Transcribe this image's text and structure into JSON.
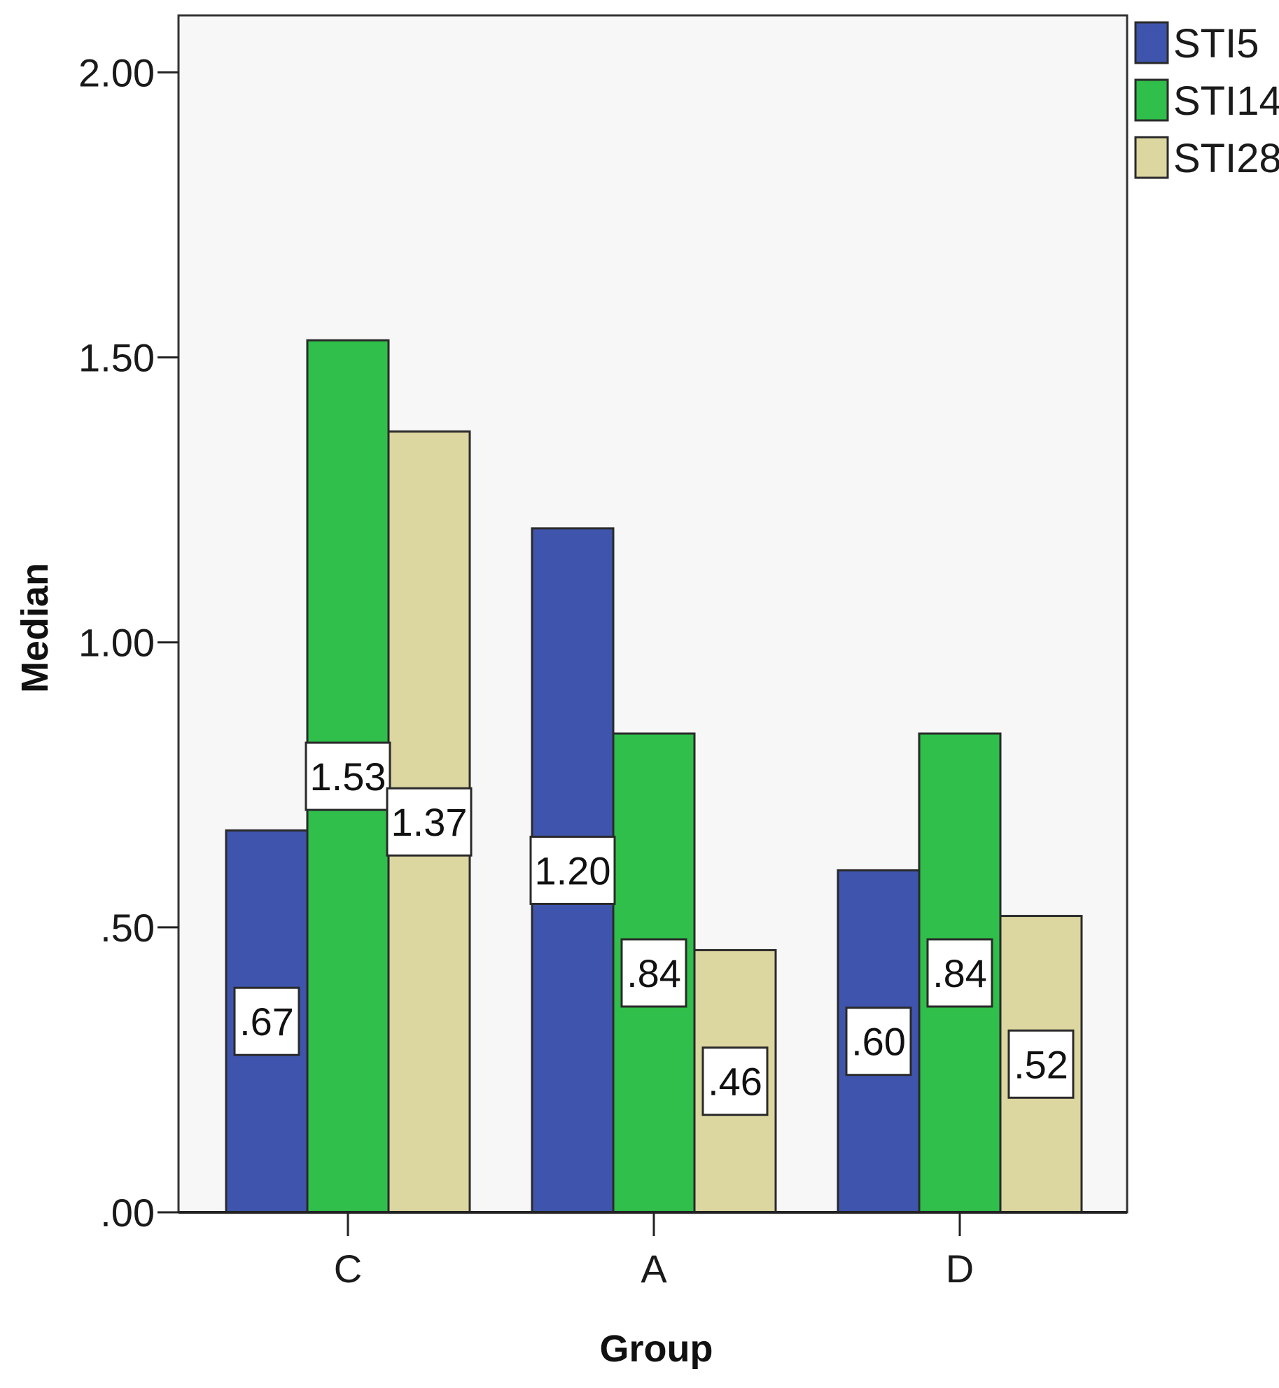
{
  "chart_data": {
    "type": "bar",
    "title": "",
    "xlabel": "Group",
    "ylabel": "Median",
    "categories": [
      "C",
      "A",
      "D"
    ],
    "series": [
      {
        "name": "STI5",
        "values": [
          0.67,
          1.2,
          0.6
        ],
        "labels": [
          ".67",
          "1.20",
          ".60"
        ],
        "color": "#3f55ad"
      },
      {
        "name": "STI14",
        "values": [
          1.53,
          0.84,
          0.84
        ],
        "labels": [
          "1.53",
          ".84",
          ".84"
        ],
        "color": "#2fbf4a"
      },
      {
        "name": "STI28",
        "values": [
          1.37,
          0.46,
          0.52
        ],
        "labels": [
          "1.37",
          ".46",
          ".52"
        ],
        "color": "#dcd6a0"
      }
    ],
    "ylim": [
      0,
      2.1
    ],
    "yticks": [
      0,
      0.5,
      1.0,
      1.5,
      2.0
    ],
    "ytick_labels": [
      ".00",
      ".50",
      "1.00",
      "1.50",
      "2.00"
    ],
    "grid": false,
    "legend_position": "top-right",
    "plot_background": "#f7f7f7"
  }
}
